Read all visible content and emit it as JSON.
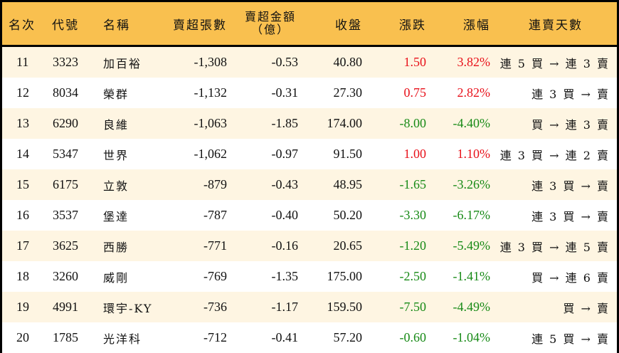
{
  "table": {
    "headers": {
      "rank": "名次",
      "code": "代號",
      "name": "名稱",
      "net_sell_lots": "賣超張數",
      "net_sell_amount_line1": "賣超金額",
      "net_sell_amount_line2": "（億）",
      "close": "收盤",
      "change": "漲跌",
      "change_pct": "漲幅",
      "streak": "連賣天數"
    },
    "colors": {
      "header_bg": "#F9C04F",
      "row_alt_bg": "#FEF5E2",
      "row_bg": "#FFFFFF",
      "up": "#E8111A",
      "down": "#178A16",
      "border": "#000000"
    },
    "rows": [
      {
        "rank": "11",
        "code": "3323",
        "name": "加百裕",
        "net_sell_lots": "-1,308",
        "net_sell_amount": "-0.53",
        "close": "40.80",
        "change": "1.50",
        "change_pct": "3.82%",
        "direction": "up",
        "streak": "連 5 買 → 連 3 賣"
      },
      {
        "rank": "12",
        "code": "8034",
        "name": "榮群",
        "net_sell_lots": "-1,132",
        "net_sell_amount": "-0.31",
        "close": "27.30",
        "change": "0.75",
        "change_pct": "2.82%",
        "direction": "up",
        "streak": "連 3 買 → 賣"
      },
      {
        "rank": "13",
        "code": "6290",
        "name": "良維",
        "net_sell_lots": "-1,063",
        "net_sell_amount": "-1.85",
        "close": "174.00",
        "change": "-8.00",
        "change_pct": "-4.40%",
        "direction": "down",
        "streak": "買 → 連 3 賣"
      },
      {
        "rank": "14",
        "code": "5347",
        "name": "世界",
        "net_sell_lots": "-1,062",
        "net_sell_amount": "-0.97",
        "close": "91.50",
        "change": "1.00",
        "change_pct": "1.10%",
        "direction": "up",
        "streak": "連 3 買 → 連 2 賣"
      },
      {
        "rank": "15",
        "code": "6175",
        "name": "立敦",
        "net_sell_lots": "-879",
        "net_sell_amount": "-0.43",
        "close": "48.95",
        "change": "-1.65",
        "change_pct": "-3.26%",
        "direction": "down",
        "streak": "連 3 買 → 賣"
      },
      {
        "rank": "16",
        "code": "3537",
        "name": "堡達",
        "net_sell_lots": "-787",
        "net_sell_amount": "-0.40",
        "close": "50.20",
        "change": "-3.30",
        "change_pct": "-6.17%",
        "direction": "down",
        "streak": "連 3 買 → 賣"
      },
      {
        "rank": "17",
        "code": "3625",
        "name": "西勝",
        "net_sell_lots": "-771",
        "net_sell_amount": "-0.16",
        "close": "20.65",
        "change": "-1.20",
        "change_pct": "-5.49%",
        "direction": "down",
        "streak": "連 3 買 → 連 5 賣"
      },
      {
        "rank": "18",
        "code": "3260",
        "name": "威剛",
        "net_sell_lots": "-769",
        "net_sell_amount": "-1.35",
        "close": "175.00",
        "change": "-2.50",
        "change_pct": "-1.41%",
        "direction": "down",
        "streak": "買 → 連 6 賣"
      },
      {
        "rank": "19",
        "code": "4991",
        "name": "環宇-KY",
        "net_sell_lots": "-736",
        "net_sell_amount": "-1.17",
        "close": "159.50",
        "change": "-7.50",
        "change_pct": "-4.49%",
        "direction": "down",
        "streak": "買 → 賣"
      },
      {
        "rank": "20",
        "code": "1785",
        "name": "光洋科",
        "net_sell_lots": "-712",
        "net_sell_amount": "-0.41",
        "close": "57.20",
        "change": "-0.60",
        "change_pct": "-1.04%",
        "direction": "down",
        "streak": "連 5 買 → 賣"
      }
    ]
  }
}
